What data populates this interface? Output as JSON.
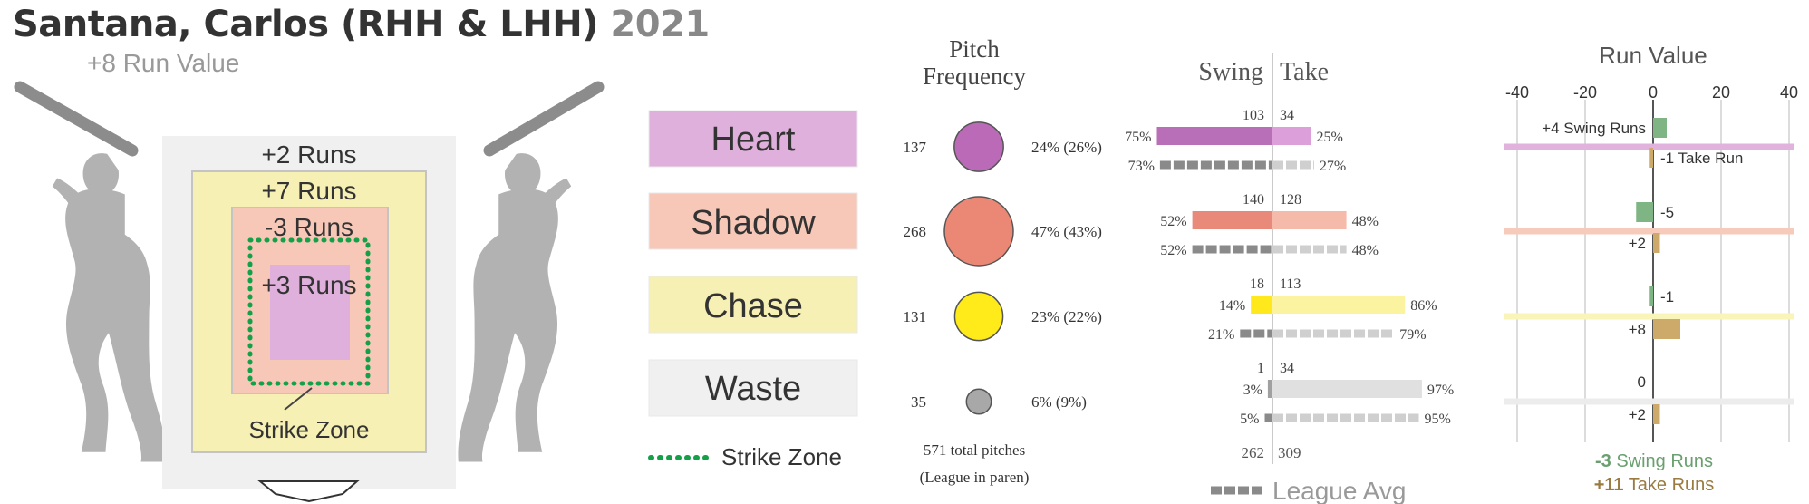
{
  "header": {
    "title": "Santana, Carlos (RHH & LHH)",
    "year": "2021",
    "subtitle": "+8 Run Value"
  },
  "zone_diagram": {
    "zone_runs": {
      "waste": "+2 Runs",
      "chase": "+7 Runs",
      "shadow": "-3 Runs",
      "heart": "+3 Runs"
    },
    "strike_zone_label": "Strike Zone"
  },
  "legend": {
    "zones": [
      "Heart",
      "Shadow",
      "Chase",
      "Waste"
    ],
    "strike_zone_label": "Strike Zone",
    "colors": {
      "Heart": "#dfb0dc",
      "Shadow": "#f7c8b8",
      "Chase": "#f7f0b4",
      "Waste": "#f0f0f0"
    }
  },
  "frequency": {
    "title_line1": "Pitch",
    "title_line2": "Frequency",
    "rows": [
      {
        "zone": "Heart",
        "count": "137",
        "pct": "24% (26%)",
        "color": "#bb6ab8"
      },
      {
        "zone": "Shadow",
        "count": "268",
        "pct": "47% (43%)",
        "color": "#eb8875"
      },
      {
        "zone": "Chase",
        "count": "131",
        "pct": "23% (22%)",
        "color": "#ffea1a"
      },
      {
        "zone": "Waste",
        "count": "35",
        "pct": "6% (9%)",
        "color": "#a8a8a8"
      }
    ],
    "total_label": "571 total pitches",
    "note": "(League in paren)"
  },
  "swing_take": {
    "swing_title": "Swing",
    "take_title": "Take",
    "legend_label": "League Avg",
    "totals": {
      "swing": "262",
      "take": "309"
    }
  },
  "run_value": {
    "title": "Run Value",
    "axis_ticks": [
      "-40",
      "-20",
      "0",
      "20",
      "40"
    ],
    "summary_swing_value": "-3",
    "summary_swing_label": "Swing Runs",
    "summary_take_value": "+11",
    "summary_take_label": "Take Runs"
  },
  "chart_data": {
    "type": "bar",
    "categories": [
      "Heart",
      "Shadow",
      "Chase",
      "Waste"
    ],
    "pitch_counts": [
      137,
      268,
      131,
      35
    ],
    "pitch_pct": [
      24,
      47,
      23,
      6
    ],
    "league_pitch_pct": [
      26,
      43,
      22,
      9
    ],
    "swing_counts": [
      103,
      140,
      18,
      1
    ],
    "take_counts": [
      34,
      128,
      113,
      34
    ],
    "swing_pct": [
      75,
      52,
      14,
      3
    ],
    "take_pct": [
      25,
      48,
      86,
      97
    ],
    "league_swing_pct": [
      73,
      52,
      21,
      5
    ],
    "league_take_pct": [
      27,
      48,
      79,
      95
    ],
    "series": [
      {
        "name": "Swing Runs",
        "values": [
          4,
          -5,
          -1,
          0
        ],
        "labels": [
          "+4 Swing Runs",
          "-5",
          "-1",
          "0"
        ]
      },
      {
        "name": "Take Runs",
        "values": [
          -1,
          2,
          8,
          2
        ],
        "labels": [
          "-1 Take Run",
          "+2",
          "+8",
          "+2"
        ]
      }
    ],
    "xlim": [
      -40,
      40
    ],
    "swing_color": "#7fb584",
    "take_color": "#ceaa6a"
  }
}
